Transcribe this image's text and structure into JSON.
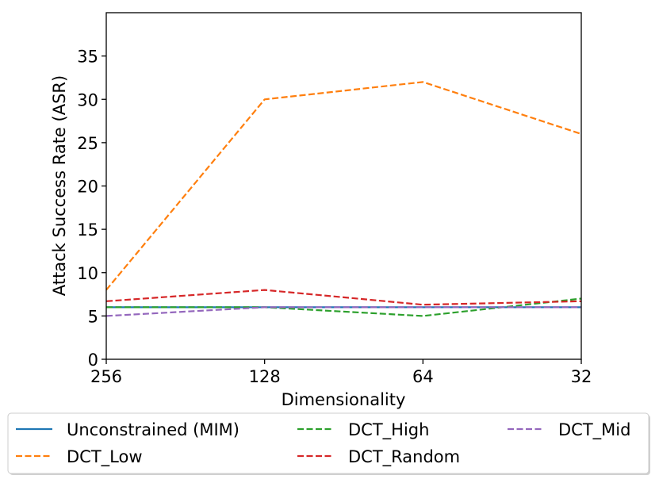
{
  "chart_data": {
    "type": "line",
    "title": "",
    "xlabel": "Dimensionality",
    "ylabel": "Attack Success Rate (ASR)",
    "categories": [
      "256",
      "128",
      "64",
      "32"
    ],
    "ylim": [
      0,
      40
    ],
    "yticks": [
      0,
      5,
      10,
      15,
      20,
      25,
      30,
      35
    ],
    "grid": false,
    "legend_position": "bottom",
    "series": [
      {
        "name": "Unconstrained (MIM)",
        "color": "#1f77b4",
        "dashed": false,
        "values": [
          6,
          6,
          6,
          6
        ]
      },
      {
        "name": "DCT_Low",
        "color": "#ff7f0e",
        "dashed": true,
        "values": [
          8,
          30,
          32,
          26
        ]
      },
      {
        "name": "DCT_High",
        "color": "#2ca02c",
        "dashed": true,
        "values": [
          6,
          6,
          5,
          7
        ]
      },
      {
        "name": "DCT_Random",
        "color": "#d62728",
        "dashed": true,
        "values": [
          6.7,
          8,
          6.3,
          6.7
        ]
      },
      {
        "name": "DCT_Mid",
        "color": "#9467bd",
        "dashed": true,
        "values": [
          5,
          6,
          6,
          6
        ]
      }
    ]
  }
}
